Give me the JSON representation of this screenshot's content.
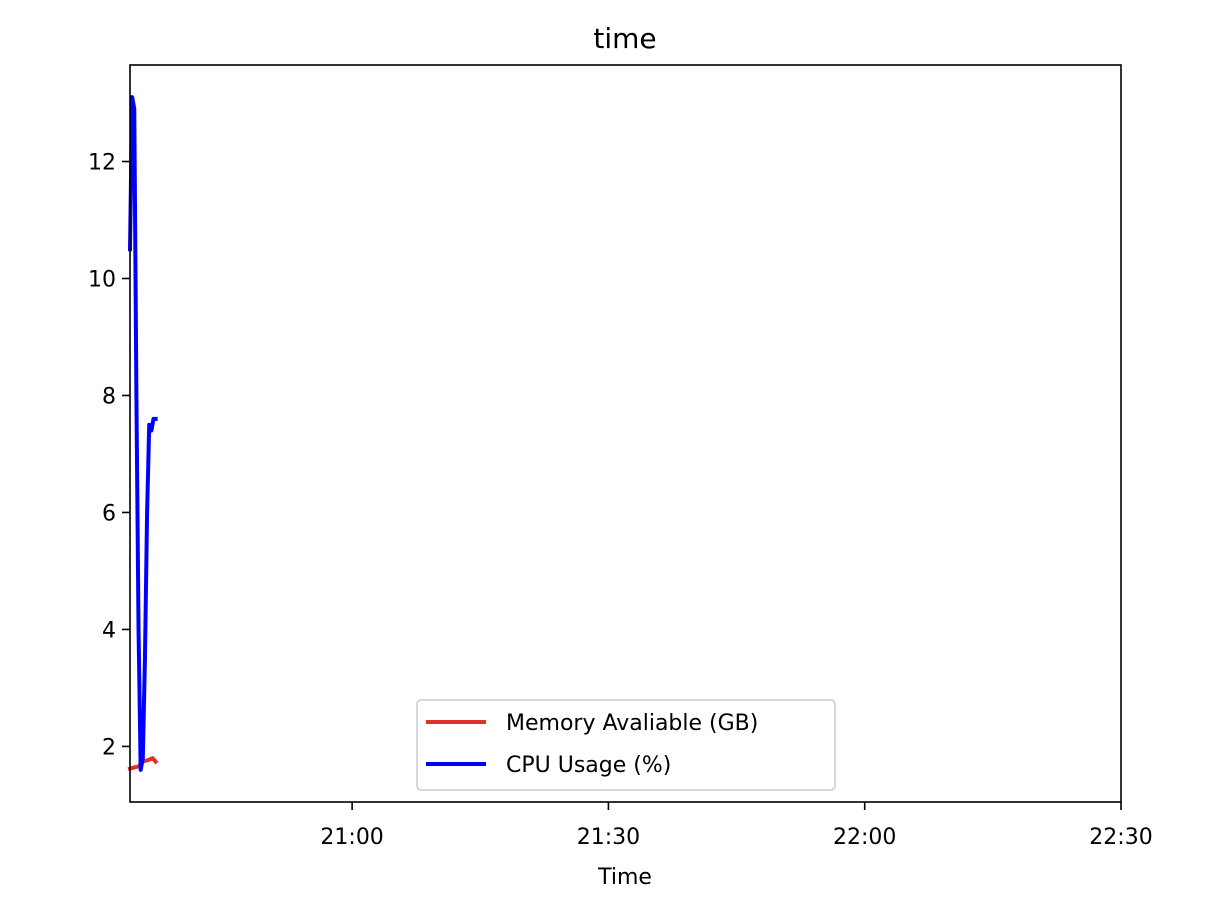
{
  "chart_data": {
    "type": "line",
    "title": "time",
    "xlabel": "Time",
    "ylabel": "",
    "x_axis_type": "time",
    "xlim": [
      "20:34",
      "22:30"
    ],
    "ylim": [
      1.05,
      13.65
    ],
    "x_ticks": [
      "21:00",
      "21:30",
      "22:00",
      "22:30"
    ],
    "y_ticks": [
      2,
      4,
      6,
      8,
      10,
      12
    ],
    "grid": false,
    "legend_position": "lower center",
    "series": [
      {
        "name": "Memory Avaliable (GB)",
        "color": "#e0312b",
        "x": [
          "20:34:00",
          "20:34:30",
          "20:35:00",
          "20:35:20",
          "20:35:40",
          "20:36:00",
          "20:36:20",
          "20:36:40",
          "20:37:00"
        ],
        "y": [
          1.62,
          1.64,
          1.66,
          1.72,
          1.75,
          1.76,
          1.78,
          1.8,
          1.74
        ]
      },
      {
        "name": "CPU Usage (%)",
        "color": "#0000ff",
        "x": [
          "20:34:00",
          "20:34:15",
          "20:34:30",
          "20:34:45",
          "20:35:00",
          "20:35:15",
          "20:35:30",
          "20:35:45",
          "20:36:00",
          "20:36:15",
          "20:36:30",
          "20:36:45",
          "20:37:00"
        ],
        "y": [
          10.5,
          13.1,
          12.9,
          8.0,
          4.0,
          1.6,
          1.8,
          3.5,
          6.0,
          7.5,
          7.4,
          7.6,
          7.6
        ]
      }
    ]
  }
}
